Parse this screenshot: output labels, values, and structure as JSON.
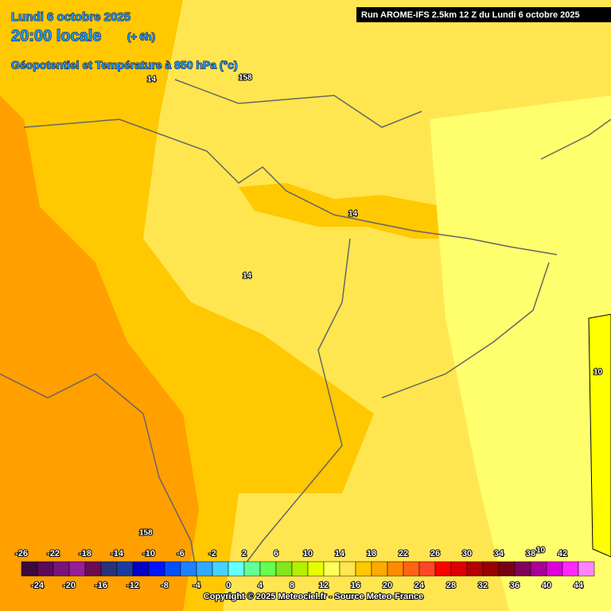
{
  "header": {
    "date": "Lundi 6 octobre 2025",
    "time": "20:00 locale",
    "offset": "(+ 6h)",
    "subtitle": "Géopotentiel et Température à 850 hPa (°c)"
  },
  "run": "Run AROME-IFS 2.5km 12 Z du Lundi 6 octobre 2025",
  "contour_labels": [
    "14",
    "158",
    "14",
    "14",
    "10",
    "158",
    "10"
  ],
  "legend": {
    "values": [
      -26,
      -24,
      -22,
      -20,
      -18,
      -16,
      -14,
      -12,
      -10,
      -8,
      -6,
      -4,
      -2,
      0,
      2,
      4,
      6,
      8,
      10,
      12,
      14,
      16,
      18,
      20,
      22,
      24,
      26,
      28,
      30,
      32,
      34,
      36,
      38,
      40,
      42,
      44
    ],
    "colors": [
      "#3c0a3c",
      "#5a0a5a",
      "#7a147a",
      "#961e96",
      "#6e0a50",
      "#283278",
      "#1e3ca0",
      "#0000c8",
      "#0014ff",
      "#0050ff",
      "#1e82ff",
      "#32aaff",
      "#46d2ff",
      "#64ffff",
      "#64ff96",
      "#64ff50",
      "#82e61e",
      "#b4f000",
      "#e6ff00",
      "#ffff5a",
      "#ffe650",
      "#ffc800",
      "#ffaa00",
      "#ff8c00",
      "#ff6414",
      "#ff4628",
      "#ff0000",
      "#dc0000",
      "#b40000",
      "#960000",
      "#780014",
      "#82005a",
      "#aa0096",
      "#dc00dc",
      "#ff28ff",
      "#ff82ff"
    ]
  },
  "copyright": "Copyright © 2025 Meteociel.fr - Source Meteo-France"
}
